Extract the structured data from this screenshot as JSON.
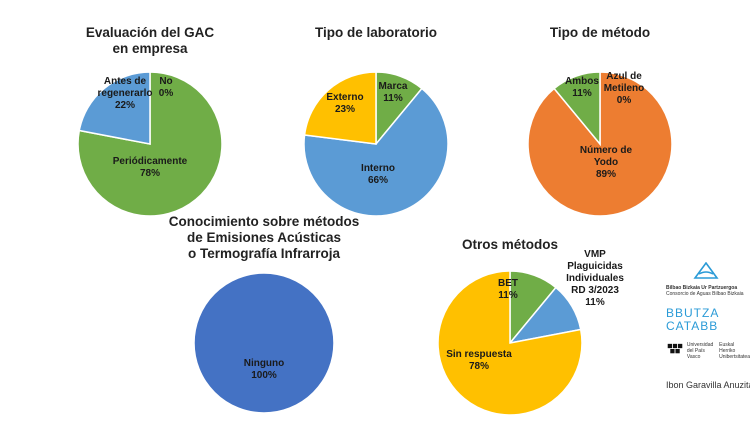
{
  "chart_data": [
    {
      "type": "pie",
      "title_lines": [
        "Evaluación del GAC",
        "en empresa"
      ],
      "slices": [
        {
          "label_lines": [
            "No",
            "0%"
          ],
          "value": 0,
          "color": "#70ad47"
        },
        {
          "label_lines": [
            "Periódicamente",
            "78%"
          ],
          "value": 78,
          "color": "#70ad47"
        },
        {
          "label_lines": [
            "Antes de",
            "regenerarlo",
            "22%"
          ],
          "value": 22,
          "color": "#5b9bd5"
        }
      ]
    },
    {
      "type": "pie",
      "title_lines": [
        "Tipo de laboratorio"
      ],
      "slices": [
        {
          "label_lines": [
            "Marca",
            "11%"
          ],
          "value": 11,
          "color": "#70ad47"
        },
        {
          "label_lines": [
            "Interno",
            "66%"
          ],
          "value": 66,
          "color": "#5b9bd5"
        },
        {
          "label_lines": [
            "Externo",
            "23%"
          ],
          "value": 23,
          "color": "#ffc000"
        }
      ]
    },
    {
      "type": "pie",
      "title_lines": [
        "Tipo de método"
      ],
      "slices": [
        {
          "label_lines": [
            "Azul de",
            "Metileno",
            "0%"
          ],
          "value": 0,
          "color": "#70ad47"
        },
        {
          "label_lines": [
            "Número de",
            "Yodo",
            "89%"
          ],
          "value": 89,
          "color": "#ed7d31"
        },
        {
          "label_lines": [
            "Ambos",
            "11%"
          ],
          "value": 11,
          "color": "#70ad47"
        }
      ]
    },
    {
      "type": "pie",
      "title_lines": [
        "Conocimiento sobre métodos",
        "de Emisiones Acústicas",
        "o Termografía Infrarroja"
      ],
      "slices": [
        {
          "label_lines": [
            "Ninguno",
            "100%"
          ],
          "value": 100,
          "color": "#4472c4"
        }
      ]
    },
    {
      "type": "pie",
      "title_lines": [
        "Otros métodos"
      ],
      "slices": [
        {
          "label_lines": [
            "BET",
            "11%"
          ],
          "value": 11,
          "color": "#70ad47"
        },
        {
          "label_lines": [
            "VMP",
            "Plaguicidas",
            "Individuales",
            "RD 3/2023",
            "11%"
          ],
          "value": 11,
          "color": "#5b9bd5"
        },
        {
          "label_lines": [
            "Sin respuesta",
            "78%"
          ],
          "value": 78,
          "color": "#ffc000"
        }
      ]
    }
  ],
  "logos": {
    "consorcio_line1": "Bilbao Bizkaia Ur Partzuergoa",
    "consorcio_line2": "Consorcio de Aguas Bilbao Bizkaia",
    "bbutza_line1": "BBUTZA",
    "bbutza_line2": "CATABB",
    "upv_line1": "Universidad",
    "upv_line2": "del País Vasco",
    "ehu_line1": "Euskal Herriko",
    "ehu_line2": "Unibertsitatea"
  },
  "author": "Ibon Garavilla Anuzita"
}
